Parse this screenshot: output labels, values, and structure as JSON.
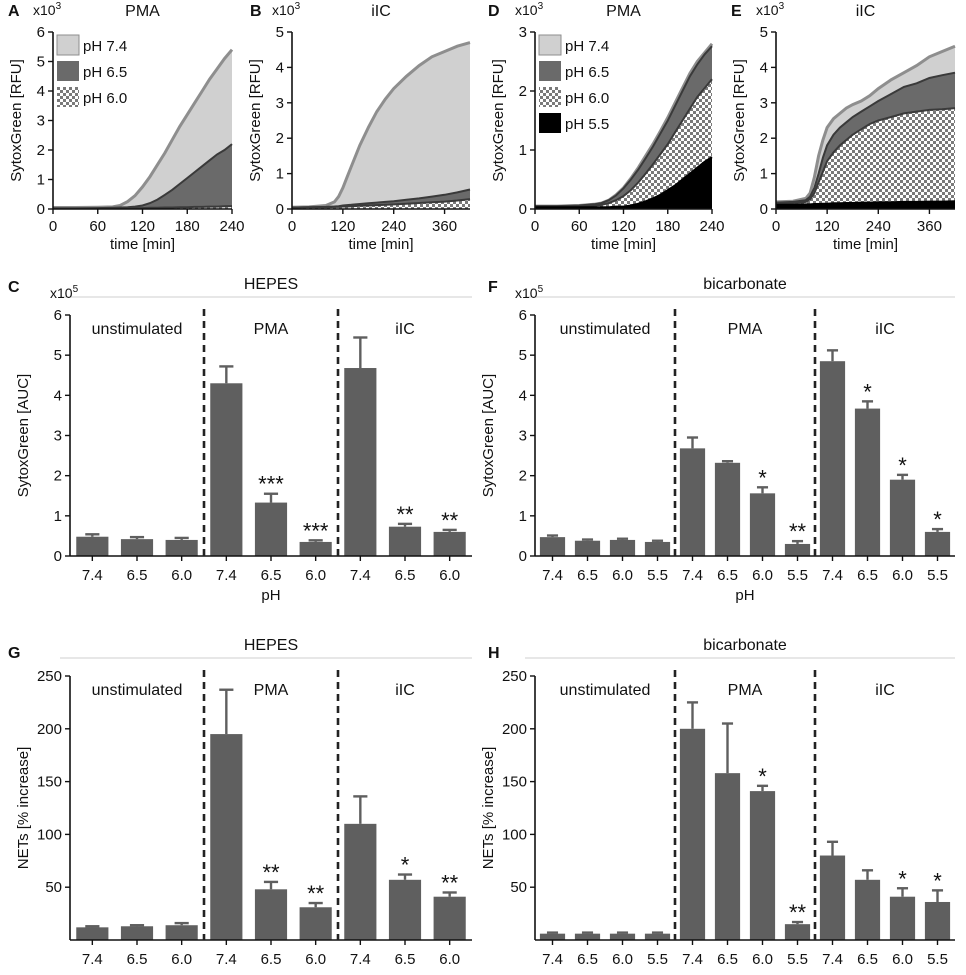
{
  "colors": {
    "axis": "#111111",
    "bar": "#5f5f5f",
    "area_light": "#d0d0d0",
    "area_mid": "#6a6a6a",
    "area_check": "#8c8c8c",
    "area_dark": "#000000",
    "line_light": "#8e8e8e",
    "line_mid": "#3a3a3a",
    "divider": "#222222",
    "group_rule": "#cfcfcf"
  },
  "chart_data": [
    {
      "id": "A",
      "panel_label": "A",
      "type": "area",
      "title": "PMA",
      "multiplier": "x10",
      "multiplier_exp": "3",
      "xlabel": "time [min]",
      "ylabel": "SytoxGreen [RFU]",
      "xlim": [
        0,
        240
      ],
      "ylim": [
        0,
        6
      ],
      "xticks": [
        0,
        60,
        120,
        180,
        240
      ],
      "yticks": [
        0,
        1,
        2,
        3,
        4,
        5,
        6
      ],
      "legend": [
        "pH 7.4",
        "pH 6.5",
        "pH 6.0"
      ],
      "x": [
        0,
        30,
        60,
        80,
        90,
        100,
        110,
        120,
        130,
        140,
        150,
        160,
        170,
        180,
        190,
        200,
        210,
        220,
        230,
        240
      ],
      "series": [
        {
          "name": "pH 7.4",
          "style": "light",
          "values": [
            0.05,
            0.05,
            0.06,
            0.07,
            0.12,
            0.25,
            0.45,
            0.75,
            1.1,
            1.5,
            1.9,
            2.35,
            2.8,
            3.2,
            3.6,
            4.0,
            4.4,
            4.75,
            5.1,
            5.4
          ]
        },
        {
          "name": "pH 6.5",
          "style": "mid",
          "values": [
            0.02,
            0.02,
            0.03,
            0.04,
            0.05,
            0.06,
            0.08,
            0.12,
            0.2,
            0.32,
            0.48,
            0.65,
            0.85,
            1.05,
            1.25,
            1.45,
            1.65,
            1.85,
            2.0,
            2.2
          ]
        },
        {
          "name": "pH 6.0",
          "style": "check",
          "values": [
            0.02,
            0.02,
            0.02,
            0.02,
            0.02,
            0.03,
            0.03,
            0.03,
            0.04,
            0.04,
            0.05,
            0.05,
            0.06,
            0.06,
            0.07,
            0.07,
            0.08,
            0.08,
            0.09,
            0.1
          ]
        }
      ]
    },
    {
      "id": "B",
      "panel_label": "B",
      "type": "area",
      "title": "iIC",
      "multiplier": "x10",
      "multiplier_exp": "3",
      "xlabel": "time [min]",
      "ylabel": "SytoxGreen [RFU]",
      "xlim": [
        0,
        420
      ],
      "ylim": [
        0,
        5
      ],
      "xticks": [
        0,
        120,
        240,
        360
      ],
      "yticks": [
        0,
        1,
        2,
        3,
        4,
        5
      ],
      "x": [
        0,
        40,
        80,
        100,
        110,
        120,
        130,
        140,
        160,
        180,
        200,
        220,
        240,
        270,
        300,
        330,
        360,
        390,
        420
      ],
      "series": [
        {
          "name": "pH 7.4",
          "style": "light",
          "values": [
            0.05,
            0.06,
            0.1,
            0.2,
            0.35,
            0.6,
            0.9,
            1.2,
            1.8,
            2.3,
            2.75,
            3.1,
            3.4,
            3.75,
            4.05,
            4.3,
            4.45,
            4.6,
            4.7
          ]
        },
        {
          "name": "pH 6.5",
          "style": "mid",
          "values": [
            0.04,
            0.05,
            0.06,
            0.07,
            0.08,
            0.1,
            0.11,
            0.12,
            0.14,
            0.16,
            0.18,
            0.2,
            0.22,
            0.26,
            0.3,
            0.35,
            0.4,
            0.47,
            0.55
          ]
        },
        {
          "name": "pH 6.0",
          "style": "check",
          "values": [
            0.04,
            0.05,
            0.05,
            0.06,
            0.06,
            0.07,
            0.07,
            0.08,
            0.09,
            0.1,
            0.11,
            0.12,
            0.13,
            0.15,
            0.17,
            0.19,
            0.21,
            0.24,
            0.28
          ]
        }
      ]
    },
    {
      "id": "D",
      "panel_label": "D",
      "type": "area",
      "title": "PMA",
      "multiplier": "x10",
      "multiplier_exp": "3",
      "xlabel": "time [min]",
      "ylabel": "SytoxGreen [RFU]",
      "xlim": [
        0,
        240
      ],
      "ylim": [
        0,
        3
      ],
      "xticks": [
        0,
        60,
        120,
        180,
        240
      ],
      "yticks": [
        0,
        1,
        2,
        3
      ],
      "legend": [
        "pH 7.4",
        "pH 6.5",
        "pH 6.0",
        "pH 5.5"
      ],
      "x": [
        0,
        30,
        60,
        80,
        90,
        100,
        110,
        120,
        130,
        140,
        150,
        160,
        170,
        180,
        190,
        200,
        210,
        220,
        230,
        240
      ],
      "series": [
        {
          "name": "pH 7.4",
          "style": "light",
          "values": [
            0.05,
            0.05,
            0.06,
            0.08,
            0.1,
            0.15,
            0.24,
            0.36,
            0.52,
            0.7,
            0.9,
            1.1,
            1.32,
            1.55,
            1.8,
            2.05,
            2.3,
            2.5,
            2.65,
            2.8
          ]
        },
        {
          "name": "pH 6.5",
          "style": "mid",
          "values": [
            0.05,
            0.05,
            0.06,
            0.08,
            0.1,
            0.15,
            0.23,
            0.35,
            0.5,
            0.67,
            0.86,
            1.06,
            1.28,
            1.5,
            1.75,
            2.0,
            2.25,
            2.45,
            2.62,
            2.76
          ]
        },
        {
          "name": "pH 6.0",
          "style": "check",
          "values": [
            0.04,
            0.04,
            0.05,
            0.06,
            0.07,
            0.1,
            0.15,
            0.22,
            0.32,
            0.45,
            0.6,
            0.76,
            0.93,
            1.1,
            1.3,
            1.5,
            1.7,
            1.9,
            2.05,
            2.2
          ]
        },
        {
          "name": "pH 5.5",
          "style": "dark",
          "values": [
            0.03,
            0.03,
            0.03,
            0.03,
            0.03,
            0.03,
            0.04,
            0.04,
            0.06,
            0.09,
            0.13,
            0.18,
            0.24,
            0.32,
            0.4,
            0.5,
            0.6,
            0.7,
            0.8,
            0.88
          ]
        }
      ]
    },
    {
      "id": "E",
      "panel_label": "E",
      "type": "area",
      "title": "iIC",
      "multiplier": "x10",
      "multiplier_exp": "3",
      "xlabel": "time [min]",
      "ylabel": "SytoxGreen [RFU]",
      "xlim": [
        0,
        420
      ],
      "ylim": [
        0,
        5
      ],
      "xticks": [
        0,
        120,
        240,
        360
      ],
      "yticks": [
        0,
        1,
        2,
        3,
        4,
        5
      ],
      "x": [
        0,
        40,
        70,
        80,
        90,
        100,
        110,
        120,
        135,
        150,
        165,
        180,
        200,
        220,
        240,
        270,
        300,
        330,
        360,
        390,
        420
      ],
      "series": [
        {
          "name": "pH 7.4",
          "style": "light",
          "values": [
            0.2,
            0.22,
            0.3,
            0.45,
            0.9,
            1.5,
            1.95,
            2.3,
            2.55,
            2.7,
            2.85,
            2.95,
            3.05,
            3.2,
            3.4,
            3.65,
            3.85,
            4.05,
            4.3,
            4.45,
            4.6
          ]
        },
        {
          "name": "pH 6.5",
          "style": "mid",
          "values": [
            0.18,
            0.2,
            0.25,
            0.35,
            0.6,
            1.0,
            1.45,
            1.8,
            2.1,
            2.3,
            2.45,
            2.6,
            2.75,
            2.9,
            3.05,
            3.25,
            3.45,
            3.55,
            3.7,
            3.78,
            3.85
          ]
        },
        {
          "name": "pH 6.0",
          "style": "check",
          "values": [
            0.15,
            0.17,
            0.2,
            0.28,
            0.45,
            0.75,
            1.05,
            1.35,
            1.6,
            1.8,
            1.95,
            2.1,
            2.25,
            2.4,
            2.5,
            2.6,
            2.7,
            2.75,
            2.8,
            2.82,
            2.85
          ]
        },
        {
          "name": "pH 5.5",
          "style": "dark",
          "values": [
            0.12,
            0.12,
            0.13,
            0.13,
            0.14,
            0.14,
            0.15,
            0.15,
            0.16,
            0.16,
            0.17,
            0.17,
            0.18,
            0.18,
            0.19,
            0.19,
            0.2,
            0.2,
            0.21,
            0.21,
            0.22
          ]
        }
      ]
    },
    {
      "id": "C",
      "panel_label": "C",
      "type": "bar",
      "title": "HEPES",
      "multiplier": "x10",
      "multiplier_exp": "5",
      "xlabel": "pH",
      "ylabel": "SytoxGreen [AUC]",
      "ylim": [
        0,
        6
      ],
      "yticks": [
        0,
        1,
        2,
        3,
        4,
        5,
        6
      ],
      "categories": [
        "7.4",
        "6.5",
        "6.0",
        "7.4",
        "6.5",
        "6.0",
        "7.4",
        "6.5",
        "6.0"
      ],
      "values": [
        0.48,
        0.42,
        0.4,
        4.3,
        1.33,
        0.35,
        4.68,
        0.73,
        0.6
      ],
      "errors": [
        0.06,
        0.05,
        0.05,
        0.42,
        0.22,
        0.04,
        0.76,
        0.07,
        0.05
      ],
      "significance": [
        "",
        "",
        "",
        "",
        "***",
        "***",
        "",
        "**",
        "**"
      ],
      "groups": [
        {
          "label": "unstimulated",
          "start": 0,
          "end": 2
        },
        {
          "label": "PMA",
          "start": 3,
          "end": 5
        },
        {
          "label": "iIC",
          "start": 6,
          "end": 8
        }
      ]
    },
    {
      "id": "F",
      "panel_label": "F",
      "type": "bar",
      "title": "bicarbonate",
      "multiplier": "x10",
      "multiplier_exp": "5",
      "xlabel": "pH",
      "ylabel": "SytoxGreen [AUC]",
      "ylim": [
        0,
        6
      ],
      "yticks": [
        0,
        1,
        2,
        3,
        4,
        5,
        6
      ],
      "categories": [
        "7.4",
        "6.5",
        "6.0",
        "5.5",
        "7.4",
        "6.5",
        "6.0",
        "5.5",
        "7.4",
        "6.5",
        "6.0",
        "5.5"
      ],
      "values": [
        0.47,
        0.38,
        0.4,
        0.35,
        2.68,
        2.32,
        1.56,
        0.3,
        4.85,
        3.67,
        1.9,
        0.6
      ],
      "errors": [
        0.04,
        0.03,
        0.03,
        0.03,
        0.27,
        0.04,
        0.15,
        0.07,
        0.27,
        0.18,
        0.12,
        0.07
      ],
      "significance": [
        "",
        "",
        "",
        "",
        "",
        "",
        "*",
        "**",
        "",
        "*",
        "*",
        "*"
      ],
      "groups": [
        {
          "label": "unstimulated",
          "start": 0,
          "end": 3
        },
        {
          "label": "PMA",
          "start": 4,
          "end": 7
        },
        {
          "label": "iIC",
          "start": 8,
          "end": 11
        }
      ]
    },
    {
      "id": "G",
      "panel_label": "G",
      "type": "bar",
      "title": "HEPES",
      "multiplier": "",
      "multiplier_exp": "",
      "xlabel": "pH",
      "ylabel": "NETs [% increase]",
      "ylim": [
        0,
        250
      ],
      "yticks": [
        50,
        100,
        150,
        200,
        250
      ],
      "categories": [
        "7.4",
        "6.5",
        "6.0",
        "7.4",
        "6.5",
        "6.0",
        "7.4",
        "6.5",
        "6.0"
      ],
      "values": [
        12,
        13,
        14,
        195,
        48,
        31,
        110,
        57,
        41
      ],
      "errors": [
        1,
        1,
        2,
        42,
        7,
        4,
        26,
        5,
        4
      ],
      "significance": [
        "",
        "",
        "",
        "",
        "**",
        "**",
        "",
        "*",
        "**"
      ],
      "groups": [
        {
          "label": "unstimulated",
          "start": 0,
          "end": 2
        },
        {
          "label": "PMA",
          "start": 3,
          "end": 5
        },
        {
          "label": "iIC",
          "start": 6,
          "end": 8
        }
      ]
    },
    {
      "id": "H",
      "panel_label": "H",
      "type": "bar",
      "title": "bicarbonate",
      "multiplier": "",
      "multiplier_exp": "",
      "xlabel": "pH",
      "ylabel": "NETs [% increase]",
      "ylim": [
        0,
        250
      ],
      "yticks": [
        50,
        100,
        150,
        200,
        250
      ],
      "categories": [
        "7.4",
        "6.5",
        "6.0",
        "5.5",
        "7.4",
        "6.5",
        "6.0",
        "5.5",
        "7.4",
        "6.5",
        "6.0",
        "5.5"
      ],
      "values": [
        6,
        6,
        6,
        6,
        200,
        158,
        141,
        15,
        80,
        57,
        41,
        36
      ],
      "errors": [
        1,
        1,
        1,
        1,
        25,
        47,
        5,
        2,
        13,
        9,
        8,
        11
      ],
      "significance": [
        "",
        "",
        "",
        "",
        "",
        "",
        "*",
        "**",
        "",
        "",
        "*",
        "*"
      ],
      "groups": [
        {
          "label": "unstimulated",
          "start": 0,
          "end": 3
        },
        {
          "label": "PMA",
          "start": 4,
          "end": 7
        },
        {
          "label": "iIC",
          "start": 8,
          "end": 11
        }
      ]
    }
  ]
}
